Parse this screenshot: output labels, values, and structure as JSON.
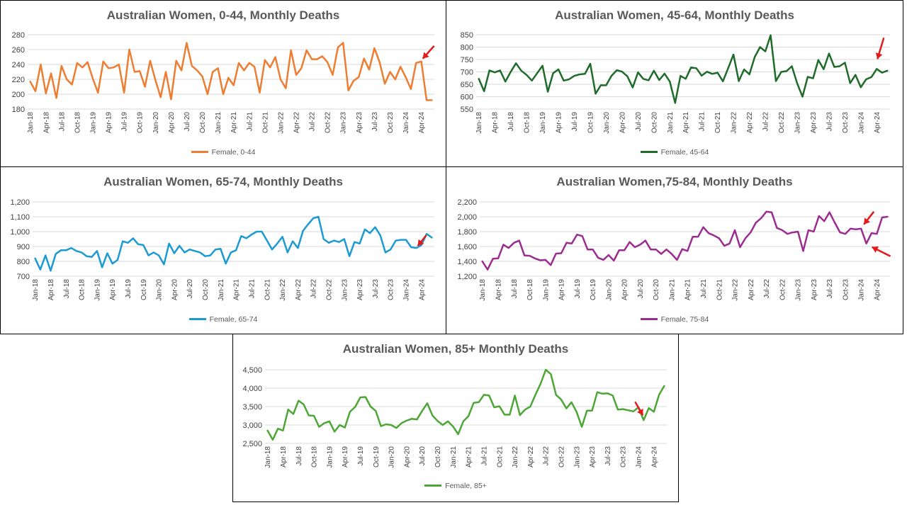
{
  "months": [
    "Jan-18",
    "Feb-18",
    "Mar-18",
    "Apr-18",
    "May-18",
    "Jun-18",
    "Jul-18",
    "Aug-18",
    "Sep-18",
    "Oct-18",
    "Nov-18",
    "Dec-18",
    "Jan-19",
    "Feb-19",
    "Mar-19",
    "Apr-19",
    "May-19",
    "Jun-19",
    "Jul-19",
    "Aug-19",
    "Sep-19",
    "Oct-19",
    "Nov-19",
    "Dec-19",
    "Jan-20",
    "Feb-20",
    "Mar-20",
    "Apr-20",
    "May-20",
    "Jun-20",
    "Jul-20",
    "Aug-20",
    "Sep-20",
    "Oct-20",
    "Nov-20",
    "Dec-20",
    "Jan-21",
    "Feb-21",
    "Mar-21",
    "Apr-21",
    "May-21",
    "Jun-21",
    "Jul-21",
    "Aug-21",
    "Sep-21",
    "Oct-21",
    "Nov-21",
    "Dec-21",
    "Jan-22",
    "Feb-22",
    "Mar-22",
    "Apr-22",
    "May-22",
    "Jun-22",
    "Jul-22",
    "Aug-22",
    "Sep-22",
    "Oct-22",
    "Nov-22",
    "Dec-22",
    "Jan-23",
    "Feb-23",
    "Mar-23",
    "Apr-23",
    "May-23",
    "Jun-23",
    "Jul-23",
    "Aug-23",
    "Sep-23",
    "Oct-23",
    "Nov-23",
    "Dec-23",
    "Jan-24",
    "Feb-24",
    "Mar-24",
    "Apr-24",
    "May-24",
    "Jun-24"
  ],
  "chart_data": [
    {
      "type": "line",
      "title": "Australian Women, 0-44, Monthly Deaths",
      "xlabel": "",
      "ylabel": "",
      "ylim": [
        180,
        280
      ],
      "yticks": [
        180,
        200,
        220,
        240,
        260,
        280
      ],
      "ytick_labels": [
        "180",
        "200",
        "220",
        "240",
        "260",
        "280"
      ],
      "grid": true,
      "legend_position": "bottom",
      "color": "#ED7D31",
      "series": [
        {
          "name": "Female, 0-44",
          "values": [
            217,
            204,
            240,
            201,
            228,
            195,
            238,
            220,
            213,
            242,
            236,
            243,
            221,
            202,
            244,
            235,
            236,
            240,
            202,
            260,
            230,
            231,
            210,
            245,
            219,
            196,
            230,
            193,
            245,
            232,
            269,
            238,
            232,
            224,
            200,
            230,
            235,
            200,
            222,
            212,
            242,
            232,
            242,
            237,
            202,
            246,
            236,
            250,
            220,
            208,
            259,
            226,
            235,
            259,
            247,
            247,
            251,
            243,
            226,
            263,
            269,
            205,
            218,
            223,
            248,
            233,
            262,
            243,
            214,
            230,
            220,
            237,
            223,
            207,
            242,
            244,
            192,
            192
          ]
        }
      ],
      "annotations": [
        {
          "type": "red-arrow",
          "target_index": 75
        }
      ]
    },
    {
      "type": "line",
      "title": "Australian Women, 45-64, Monthly Deaths",
      "xlabel": "",
      "ylabel": "",
      "ylim": [
        550,
        850
      ],
      "yticks": [
        550,
        600,
        650,
        700,
        750,
        800,
        850
      ],
      "ytick_labels": [
        "550",
        "600",
        "650",
        "700",
        "750",
        "800",
        "850"
      ],
      "grid": true,
      "legend_position": "bottom",
      "color": "#1E6B2A",
      "series": [
        {
          "name": "Female, 45-64",
          "values": [
            672,
            622,
            706,
            698,
            706,
            661,
            700,
            735,
            705,
            688,
            665,
            695,
            725,
            620,
            695,
            710,
            665,
            670,
            684,
            690,
            692,
            733,
            612,
            646,
            646,
            684,
            707,
            701,
            682,
            637,
            698,
            672,
            666,
            705,
            667,
            693,
            661,
            575,
            684,
            672,
            718,
            715,
            685,
            701,
            692,
            697,
            662,
            715,
            770,
            663,
            710,
            690,
            760,
            800,
            783,
            848,
            663,
            700,
            703,
            723,
            654,
            600,
            680,
            674,
            748,
            711,
            774,
            720,
            723,
            737,
            655,
            688,
            638,
            670,
            679,
            712,
            697,
            705
          ]
        }
      ],
      "annotations": [
        {
          "type": "red-arrow",
          "target_index": 75
        }
      ]
    },
    {
      "type": "line",
      "title": "Australian Women, 65-74, Monthly Deaths",
      "xlabel": "",
      "ylabel": "",
      "ylim": [
        700,
        1200
      ],
      "yticks": [
        700,
        800,
        900,
        1000,
        1100,
        1200
      ],
      "ytick_labels": [
        "700",
        "800",
        "900",
        "1,000",
        "1,100",
        "1,200"
      ],
      "grid": true,
      "legend_position": "bottom",
      "color": "#1C9AD2",
      "series": [
        {
          "name": "Female, 65-74",
          "values": [
            820,
            745,
            840,
            737,
            850,
            875,
            875,
            890,
            870,
            860,
            835,
            830,
            870,
            760,
            855,
            785,
            810,
            935,
            925,
            955,
            915,
            910,
            840,
            860,
            840,
            780,
            920,
            855,
            905,
            860,
            880,
            870,
            860,
            835,
            840,
            880,
            885,
            785,
            860,
            875,
            970,
            955,
            980,
            1000,
            1000,
            940,
            880,
            920,
            965,
            860,
            935,
            890,
            1005,
            1050,
            1090,
            1100,
            950,
            925,
            940,
            930,
            950,
            835,
            930,
            920,
            1015,
            990,
            1030,
            975,
            860,
            880,
            940,
            945,
            945,
            895,
            890,
            910,
            985,
            960
          ]
        }
      ],
      "annotations": [
        {
          "type": "red-arrow",
          "target_index": 74
        }
      ]
    },
    {
      "type": "line",
      "title": "Australian Women,75-84, Monthly Deaths",
      "xlabel": "",
      "ylabel": "",
      "ylim": [
        1200,
        2200
      ],
      "yticks": [
        1200,
        1400,
        1600,
        1800,
        2000,
        2200
      ],
      "ytick_labels": [
        "1,200",
        "1,400",
        "1,600",
        "1,800",
        "2,000",
        "2,200"
      ],
      "grid": true,
      "legend_position": "bottom",
      "color": "#9B2D91",
      "series": [
        {
          "name": "Female, 75-84",
          "values": [
            1400,
            1290,
            1435,
            1440,
            1625,
            1580,
            1650,
            1680,
            1480,
            1475,
            1440,
            1415,
            1420,
            1350,
            1505,
            1510,
            1650,
            1640,
            1760,
            1740,
            1560,
            1560,
            1450,
            1420,
            1485,
            1410,
            1550,
            1550,
            1660,
            1590,
            1625,
            1680,
            1560,
            1560,
            1500,
            1560,
            1500,
            1420,
            1565,
            1540,
            1730,
            1730,
            1860,
            1780,
            1750,
            1710,
            1610,
            1640,
            1820,
            1590,
            1710,
            1790,
            1920,
            1980,
            2070,
            2060,
            1850,
            1820,
            1770,
            1790,
            1800,
            1540,
            1820,
            1800,
            2010,
            1940,
            2060,
            1920,
            1790,
            1770,
            1840,
            1830,
            1840,
            1640,
            1780,
            1770,
            1990,
            2000
          ]
        }
      ],
      "annotations": [
        {
          "type": "red-arrow",
          "target_index": 72
        },
        {
          "type": "red-arrow",
          "target_index": 73
        }
      ]
    },
    {
      "type": "line",
      "title": "Australian Women, 85+ Monthly Deaths",
      "xlabel": "",
      "ylabel": "",
      "ylim": [
        2500,
        4500
      ],
      "yticks": [
        2500,
        3000,
        3500,
        4000,
        4500
      ],
      "ytick_labels": [
        "2,500",
        "3,000",
        "3,500",
        "4,000",
        "4,500"
      ],
      "grid": true,
      "legend_position": "bottom",
      "color": "#4CA736",
      "series": [
        {
          "name": "Female, 85+",
          "values": [
            2850,
            2600,
            2900,
            2850,
            3420,
            3300,
            3660,
            3560,
            3260,
            3250,
            2950,
            3050,
            3100,
            2820,
            3000,
            2930,
            3360,
            3490,
            3750,
            3760,
            3500,
            3380,
            2970,
            3020,
            3000,
            2920,
            3050,
            3120,
            3170,
            3150,
            3380,
            3590,
            3260,
            3110,
            3000,
            3100,
            2960,
            2750,
            3100,
            3240,
            3600,
            3620,
            3820,
            3800,
            3480,
            3510,
            3280,
            3280,
            3800,
            3270,
            3420,
            3500,
            3820,
            4120,
            4500,
            4380,
            3820,
            3690,
            3450,
            3620,
            3350,
            2950,
            3390,
            3390,
            3890,
            3850,
            3860,
            3800,
            3420,
            3430,
            3400,
            3370,
            3480,
            3130,
            3460,
            3360,
            3820,
            4060
          ]
        }
      ],
      "annotations": [
        {
          "type": "red-arrow",
          "target_index": 73
        }
      ]
    }
  ]
}
